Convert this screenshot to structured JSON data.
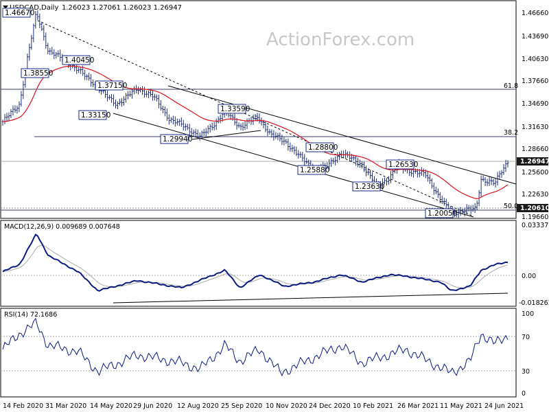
{
  "header": {
    "symbol": "USDCAD,Daily",
    "ohlc": "1.26023 1.27061 1.26023 1.26947"
  },
  "watermark": "ActionForex.com",
  "chart_data": [
    {
      "type": "line",
      "panel": "price",
      "y_ticks": [
        "1.46660",
        "1.43690",
        "1.40630",
        "1.37660",
        "1.34690",
        "1.31630",
        "1.28660",
        "1.25600",
        "1.22630",
        "1.19660"
      ],
      "ylim": [
        1.1966,
        1.4666
      ],
      "x_ticks": [
        "14 Feb 2020",
        "31 Mar 2020",
        "14 May 2020",
        "29 Jun 2020",
        "12 Aug 2020",
        "25 Sep 2020",
        "10 Nov 2020",
        "24 Dec 2020",
        "10 Feb 2021",
        "26 Mar 2021",
        "11 May 2021",
        "24 Jun 2021"
      ],
      "series": [
        {
          "points": [
            [
              "14 Feb 2020",
              1.322
            ],
            [
              "2 Mar 2020",
              1.345
            ],
            [
              "9 Mar 2020",
              1.4
            ],
            [
              "19 Mar 2020",
              1.4667
            ],
            [
              "31 Mar 2020",
              1.415
            ],
            [
              "15 Apr 2020",
              1.405
            ],
            [
              "30 Apr 2020",
              1.39
            ],
            [
              "14 May 2020",
              1.375
            ],
            [
              "29 May 2020",
              1.355
            ],
            [
              "8 Jun 2020",
              1.345
            ],
            [
              "29 Jun 2020",
              1.366
            ],
            [
              "15 Jul 2020",
              1.355
            ],
            [
              "31 Jul 2020",
              1.325
            ],
            [
              "12 Aug 2020",
              1.318
            ],
            [
              "31 Aug 2020",
              1.302
            ],
            [
              "15 Sep 2020",
              1.32
            ],
            [
              "25 Sep 2020",
              1.3359
            ],
            [
              "10 Oct 2020",
              1.315
            ],
            [
              "28 Oct 2020",
              1.328
            ],
            [
              "10 Nov 2020",
              1.305
            ],
            [
              "25 Nov 2020",
              1.295
            ],
            [
              "10 Dec 2020",
              1.275
            ],
            [
              "24 Dec 2020",
              1.2588
            ],
            [
              "5 Jan 2021",
              1.262
            ],
            [
              "20 Jan 2021",
              1.2809
            ],
            [
              "10 Feb 2021",
              1.265
            ],
            [
              "25 Feb 2021",
              1.2363
            ],
            [
              "10 Mar 2021",
              1.248
            ],
            [
              "18 Mar 2021",
              1.2653
            ],
            [
              "26 Mar 2021",
              1.258
            ],
            [
              "15 Apr 2021",
              1.252
            ],
            [
              "30 Apr 2021",
              1.22
            ],
            [
              "11 May 2021",
              1.2005
            ],
            [
              "25 May 2021",
              1.205
            ],
            [
              "5 Jun 2021",
              1.2061
            ],
            [
              "10 Jun 2021",
              1.246
            ],
            [
              "24 Jun 2021",
              1.24
            ],
            [
              "30 Jun 2021",
              1.255
            ],
            [
              "7 Jul 2021",
              1.26947
            ]
          ]
        }
      ],
      "moving_average_color": "#e0101a",
      "price_color": "#0a1a6a",
      "current_price": "1.26947",
      "marker_price": "1.20610",
      "horizontal_levels": [
        {
          "label": "61.8",
          "value": 1.3715
        },
        {
          "label": "38.2",
          "value": 1.3012
        },
        {
          "label": "50.0",
          "value": 1.2087
        }
      ],
      "annotations": [
        "1.46670",
        "1.38550",
        "1.40450",
        "1.37150",
        "1.33150",
        "1.29940",
        "1.33590",
        "1.28800",
        "1.25880",
        "1.23630",
        "1.26530",
        "1.20050"
      ]
    },
    {
      "type": "line",
      "panel": "MACD",
      "title": "MACD(12,26,9) 0.009689 0.007648",
      "y_ticks": [
        "0.03337",
        "0.00",
        "-0.018262"
      ],
      "ylim": [
        -0.018262,
        0.03337
      ],
      "series_colors": [
        "#0a1a80",
        "#aaaaaa"
      ],
      "points": [
        [
          "14 Feb 2020",
          0.003
        ],
        [
          "2 Mar 2020",
          0.008
        ],
        [
          "19 Mar 2020",
          0.029
        ],
        [
          "31 Mar 2020",
          0.014
        ],
        [
          "30 Apr 2020",
          0.003
        ],
        [
          "20 May 2020",
          -0.01
        ],
        [
          "29 Jun 2020",
          -0.003
        ],
        [
          "12 Aug 2020",
          -0.008
        ],
        [
          "25 Sep 2020",
          0.004
        ],
        [
          "10 Oct 2020",
          -0.008
        ],
        [
          "30 Oct 2020",
          0.001
        ],
        [
          "24 Nov 2020",
          -0.007
        ],
        [
          "24 Dec 2020",
          -0.004
        ],
        [
          "20 Jan 2021",
          0.001
        ],
        [
          "10 Feb 2021",
          -0.004
        ],
        [
          "10 Mar 2021",
          0.001
        ],
        [
          "26 Mar 2021",
          0.0
        ],
        [
          "30 Apr 2021",
          -0.004
        ],
        [
          "11 May 2021",
          -0.01
        ],
        [
          "30 May 2021",
          -0.007
        ],
        [
          "10 Jun 2021",
          0.004
        ],
        [
          "24 Jun 2021",
          0.0078
        ],
        [
          "7 Jul 2021",
          0.009689
        ]
      ]
    },
    {
      "type": "line",
      "panel": "RSI",
      "title": "RSI(14) 72.1686",
      "y_ticks": [
        "100",
        "70",
        "30",
        "0"
      ],
      "ylim": [
        0,
        100
      ],
      "series_colors": [
        "#0a1a80"
      ],
      "points": [
        [
          "14 Feb 2020",
          55
        ],
        [
          "2 Mar 2020",
          75
        ],
        [
          "19 Mar 2020",
          88
        ],
        [
          "31 Mar 2020",
          60
        ],
        [
          "30 Apr 2020",
          52
        ],
        [
          "20 May 2020",
          27
        ],
        [
          "29 Jun 2020",
          48
        ],
        [
          "12 Aug 2020",
          38
        ],
        [
          "31 Aug 2020",
          30
        ],
        [
          "25 Sep 2020",
          60
        ],
        [
          "10 Oct 2020",
          40
        ],
        [
          "30 Oct 2020",
          55
        ],
        [
          "20 Nov 2020",
          25
        ],
        [
          "24 Dec 2020",
          45
        ],
        [
          "20 Jan 2021",
          60
        ],
        [
          "10 Feb 2021",
          38
        ],
        [
          "26 Mar 2021",
          55
        ],
        [
          "11 May 2021",
          25
        ],
        [
          "30 May 2021",
          40
        ],
        [
          "10 Jun 2021",
          75
        ],
        [
          "24 Jun 2021",
          62
        ],
        [
          "7 Jul 2021",
          72.1686
        ]
      ]
    }
  ]
}
